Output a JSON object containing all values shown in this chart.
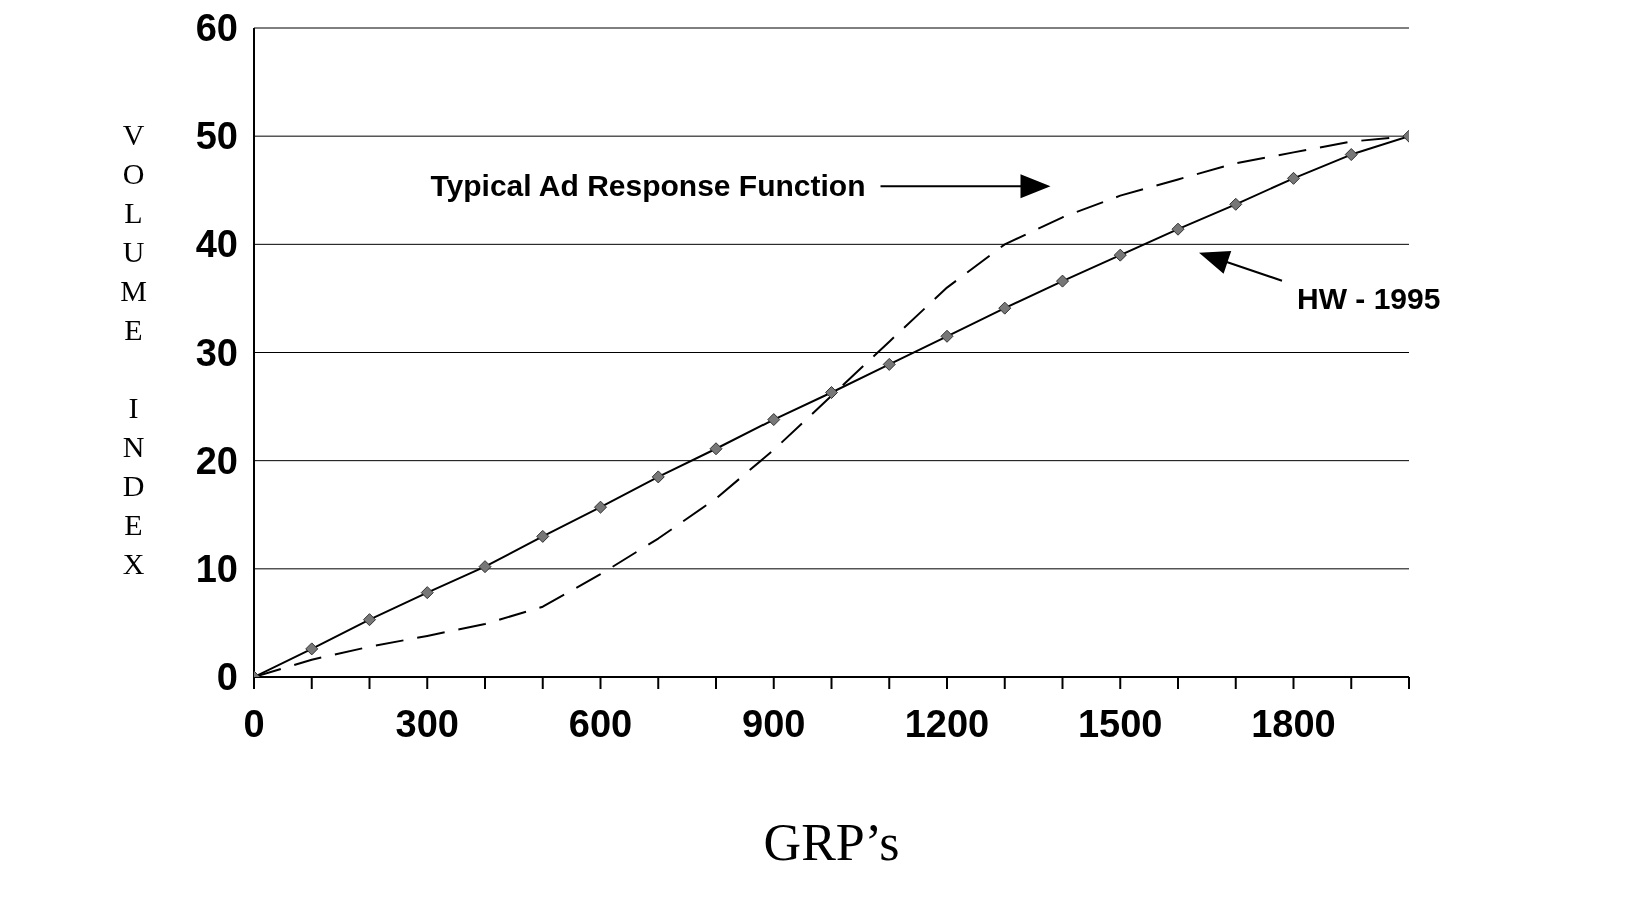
{
  "chart_data": {
    "type": "line",
    "xlabel": "GRP’s",
    "ylabel": "VOLUME INDEX",
    "x": [
      0,
      100,
      200,
      300,
      400,
      500,
      600,
      700,
      800,
      900,
      1000,
      1100,
      1200,
      1300,
      1400,
      1500,
      1600,
      1700,
      1800,
      1900,
      2000
    ],
    "series": [
      {
        "color": "#000000",
        "line_style": "dashed",
        "marker": "none",
        "values": [
          0,
          1.6,
          2.8,
          3.8,
          4.9,
          6.5,
          9.5,
          12.8,
          16.5,
          21,
          26,
          31,
          36,
          40,
          42.5,
          44.5,
          46,
          47.5,
          48.5,
          49.5,
          50
        ]
      },
      {
        "color": "#000000",
        "line_style": "solid",
        "marker": "diamond",
        "values": [
          0,
          2.6,
          5.3,
          7.8,
          10.2,
          13,
          15.7,
          18.5,
          21.1,
          23.8,
          26.3,
          28.9,
          31.5,
          34.1,
          36.6,
          39,
          41.4,
          43.7,
          46.1,
          48.3,
          50
        ]
      }
    ],
    "xlim": [
      0,
      2000
    ],
    "xticks": [
      0,
      {
        "value": 100,
        "label": null
      },
      {
        "value": 200,
        "label": null
      },
      300,
      {
        "value": 400,
        "label": null
      },
      {
        "value": 500,
        "label": null
      },
      600,
      {
        "value": 700,
        "label": null
      },
      {
        "value": 800,
        "label": null
      },
      900,
      {
        "value": 1000,
        "label": null
      },
      {
        "value": 1100,
        "label": null
      },
      1200,
      {
        "value": 1300,
        "label": null
      },
      {
        "value": 1400,
        "label": null
      },
      1500,
      {
        "value": 1600,
        "label": null
      },
      {
        "value": 1700,
        "label": null
      },
      1800,
      {
        "value": 1900,
        "label": null
      },
      {
        "value": 2000,
        "label": null
      }
    ],
    "annotations": [
      "Typical Ad Response Function",
      "HW - 1995"
    ],
    "ylim": [
      0,
      60
    ],
    "yticks": [
      0,
      10,
      20,
      30,
      40,
      50,
      60
    ],
    "grid": "y",
    "legend": false
  }
}
